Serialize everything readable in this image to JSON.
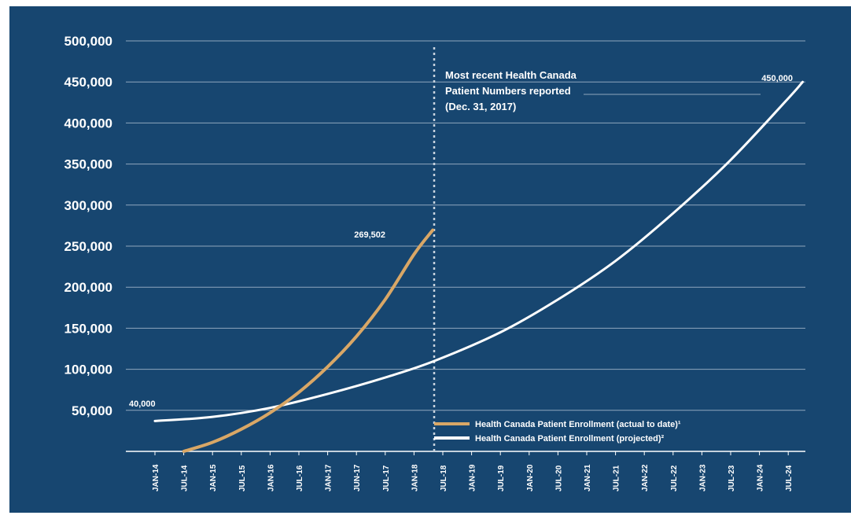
{
  "chart_data": {
    "type": "line",
    "x": [
      "JAN-14",
      "JUL-14",
      "JAN-15",
      "JUL-15",
      "JAN-16",
      "JUL-16",
      "JAN-17",
      "JUN-17",
      "JUL-17",
      "JAN-18",
      "JUL-18",
      "JAN-19",
      "JUL-19",
      "JAN-20",
      "JUL-20",
      "JAN-21",
      "JUL-21",
      "JAN-22",
      "JUL-22",
      "JAN-23",
      "JUL-23",
      "JAN-24",
      "JUL-24"
    ],
    "ylim": [
      0,
      500000
    ],
    "yticks": [
      {
        "value": 500000,
        "label": "500,000"
      },
      {
        "value": 450000,
        "label": "450,000"
      },
      {
        "value": 400000,
        "label": "400,000"
      },
      {
        "value": 350000,
        "label": "350,000"
      },
      {
        "value": 300000,
        "label": "300,000"
      },
      {
        "value": 250000,
        "label": "250,000"
      },
      {
        "value": 200000,
        "label": "200,000"
      },
      {
        "value": 150000,
        "label": "150,000"
      },
      {
        "value": 100000,
        "label": "100,000"
      },
      {
        "value": 50000,
        "label": "50,000"
      }
    ],
    "grid": true,
    "series": [
      {
        "name": "Health Canada Patient Enrollment (actual to date)¹",
        "color": "#d9a766",
        "points": [
          [
            1.0,
            0
          ],
          [
            2.0,
            11000
          ],
          [
            3.0,
            27000
          ],
          [
            4.0,
            47000
          ],
          [
            5.0,
            72000
          ],
          [
            6.0,
            103000
          ],
          [
            7.0,
            140000
          ],
          [
            8.0,
            185000
          ],
          [
            9.0,
            240000
          ],
          [
            9.65,
            269502
          ]
        ]
      },
      {
        "name": "Health Canada Patient Enrollment (projected)²",
        "color": "#ffffff",
        "points": [
          [
            0,
            37000
          ],
          [
            2,
            42000
          ],
          [
            4,
            53000
          ],
          [
            6,
            70000
          ],
          [
            8,
            90000
          ],
          [
            9.7,
            110000
          ],
          [
            12,
            145000
          ],
          [
            14,
            185000
          ],
          [
            16,
            232000
          ],
          [
            18,
            290000
          ],
          [
            20,
            355000
          ],
          [
            22,
            430000
          ],
          [
            22.5,
            450000
          ]
        ]
      }
    ],
    "data_labels": [
      {
        "text": "40,000"
      },
      {
        "text": "269,502"
      },
      {
        "text": "450,000"
      }
    ],
    "annotation": {
      "lines": [
        "Most recent Health Canada",
        "Patient Numbers reported",
        "(Dec. 31, 2017)"
      ],
      "x": 9.7
    },
    "legend": {
      "position": "bottom-right"
    }
  }
}
